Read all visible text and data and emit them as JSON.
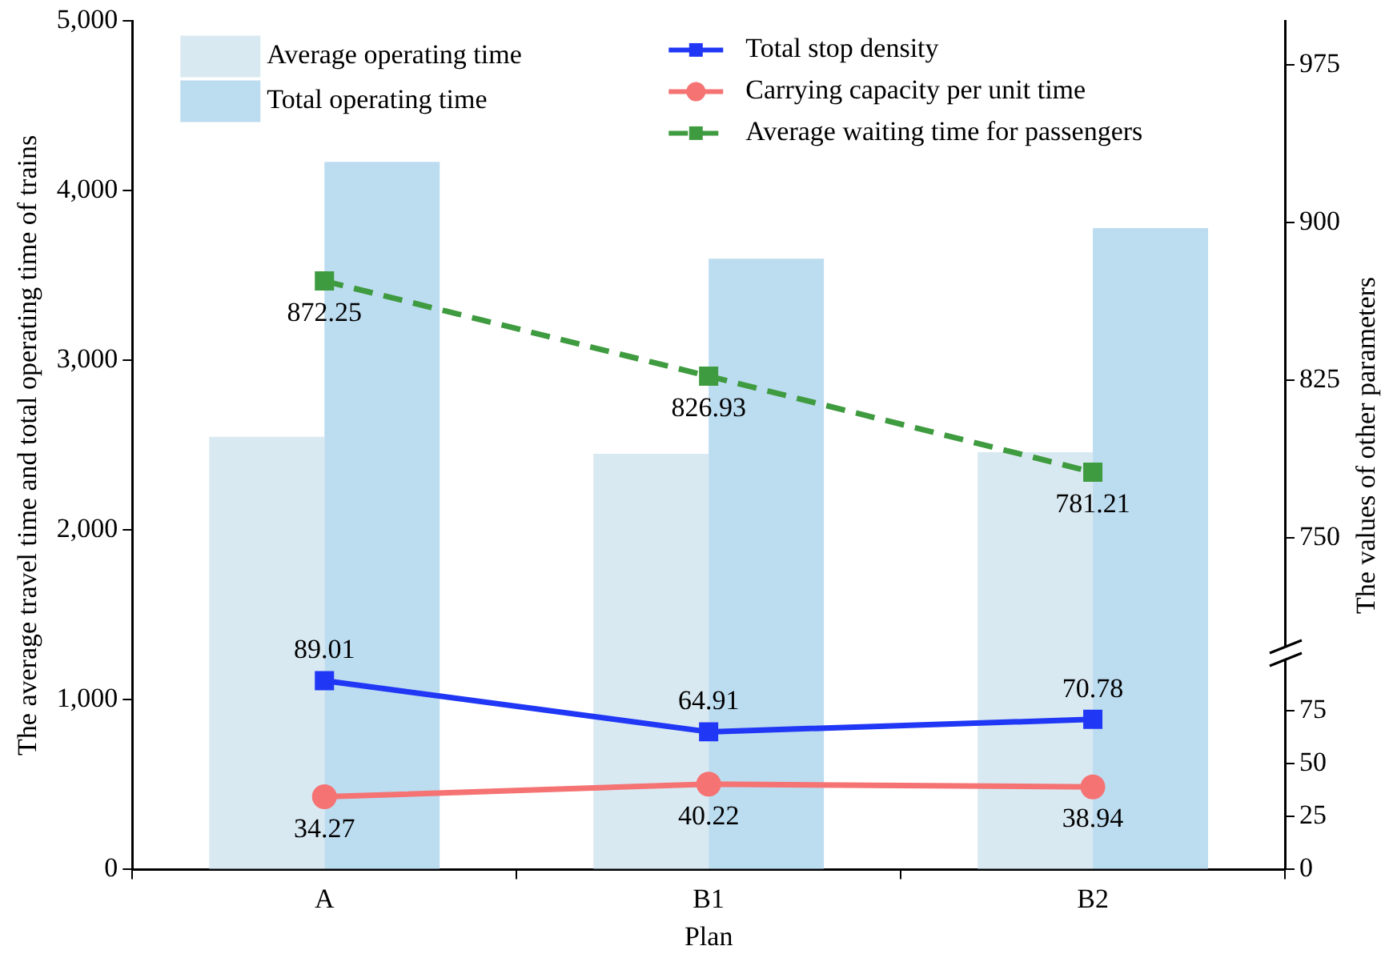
{
  "chart_data": {
    "type": "bar",
    "categories": [
      "A",
      "B1",
      "B2"
    ],
    "xlabel": "Plan",
    "ylabel": "The average travel time and total operating time of trains",
    "y2label": "The values of other parameters",
    "series": [
      {
        "name": "Average operating time",
        "color": "#d9e9f2",
        "values": [
          2550,
          2450,
          2460
        ]
      },
      {
        "name": "Total operating time",
        "color": "#bcdcf0",
        "values": [
          4170,
          3600,
          3780
        ]
      },
      {
        "name": "Total stop density",
        "type": "line",
        "axis": "y2",
        "color": "#2038f5",
        "marker": "square",
        "line_style": "solid",
        "values": [
          89.01,
          64.91,
          70.78
        ],
        "value_labels": [
          "89.01",
          "64.91",
          "70.78"
        ]
      },
      {
        "name": "Carrying capacity per unit time",
        "type": "line",
        "axis": "y2",
        "color": "#f57373",
        "marker": "circle",
        "line_style": "solid",
        "values": [
          34.27,
          40.22,
          38.94
        ],
        "value_labels": [
          "34.27",
          "40.22",
          "38.94"
        ]
      },
      {
        "name": "Average waiting time for passengers",
        "type": "line",
        "axis": "y3",
        "color": "#3f9b3f",
        "marker": "square",
        "line_style": "dashed",
        "values": [
          872.25,
          826.93,
          781.21
        ],
        "value_labels": [
          "872.25",
          "826.93",
          "781.21"
        ]
      }
    ],
    "ylim": [
      0,
      5000
    ],
    "yticks": [
      0,
      {
        "value": 1000,
        "label": "1,000"
      },
      {
        "value": 2000,
        "label": "2,000"
      },
      {
        "value": 3000,
        "label": "3,000"
      },
      {
        "value": 4000,
        "label": "4,000"
      },
      {
        "value": 5000,
        "label": "5,000"
      }
    ],
    "y2lim": [
      0,
      400
    ],
    "y2ticks": [
      0,
      25,
      50,
      75
    ],
    "y3lim": [
      592,
      996
    ],
    "y3ticks": [
      750,
      825,
      900,
      975
    ],
    "grid": false,
    "legend": "top"
  }
}
